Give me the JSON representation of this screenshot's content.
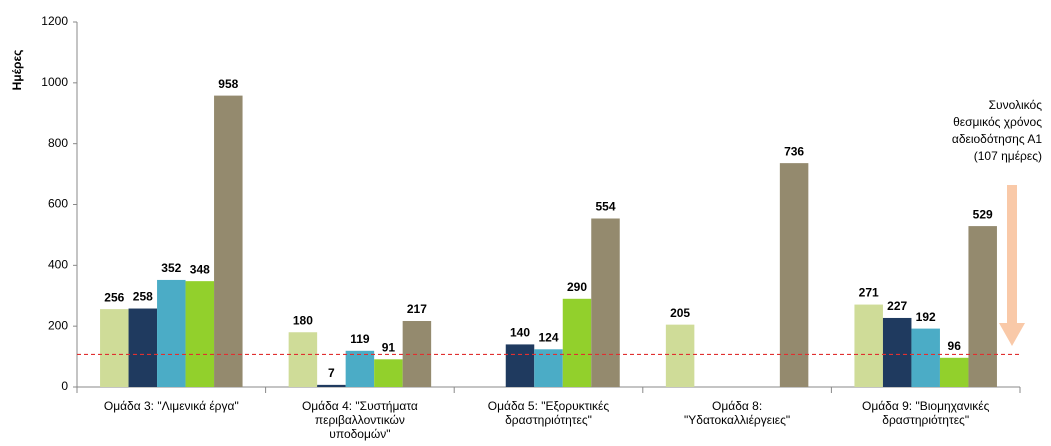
{
  "chart_data": {
    "type": "bar",
    "y_label": "Ημέρες",
    "categories": [
      [
        "Ομάδα 3: \"Λιμενικά έργα\""
      ],
      [
        "Ομάδα 4: \"Συστήματα",
        "περιβαλλοντικών",
        "υποδομών\""
      ],
      [
        "Ομάδα 5: \"Εξορυκτικές",
        "δραστηριότητες\""
      ],
      [
        "Ομάδα 8:",
        "\"Υδατοκαλλιέργειες\""
      ],
      [
        "Ομάδα 9: \"Βιομηχανικές",
        "δραστηριότητες\""
      ]
    ],
    "series": [
      {
        "color": "#cfdc98",
        "values": [
          256,
          180,
          null,
          205,
          271
        ]
      },
      {
        "color": "#1f3a5f",
        "values": [
          258,
          7,
          140,
          null,
          227
        ]
      },
      {
        "color": "#4bacc6",
        "values": [
          352,
          119,
          124,
          null,
          192
        ]
      },
      {
        "color": "#92d02c",
        "values": [
          348,
          91,
          290,
          null,
          96
        ]
      },
      {
        "color": "#948a6e",
        "values": [
          958,
          217,
          554,
          736,
          529
        ]
      }
    ],
    "ylim": [
      0,
      1200
    ],
    "yticks": [
      0,
      200,
      400,
      600,
      800,
      1000,
      1200
    ],
    "reference_line": {
      "value": 107,
      "color": "#e03030"
    },
    "annotation": [
      "Συνολικός",
      "θεσμικός χρόνος",
      "αδειοδότησης Α1",
      "(107 ημέρες)"
    ]
  }
}
